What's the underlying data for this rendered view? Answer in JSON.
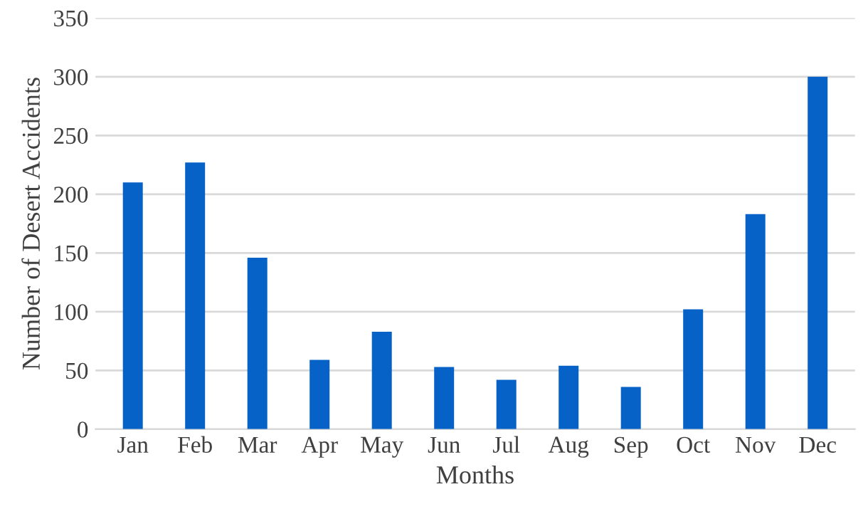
{
  "chart_data": {
    "type": "bar",
    "xlabel": "Months",
    "ylabel": "Number of Desert Accidents",
    "categories": [
      "Jan",
      "Feb",
      "Mar",
      "Apr",
      "May",
      "Jun",
      "Jul",
      "Aug",
      "Sep",
      "Oct",
      "Nov",
      "Dec"
    ],
    "values": [
      210,
      227,
      146,
      59,
      83,
      53,
      42,
      54,
      36,
      102,
      183,
      300
    ],
    "color": "#0762c8",
    "ylim": [
      0,
      350
    ],
    "yticks": [
      0,
      50,
      100,
      150,
      200,
      250,
      300,
      350
    ],
    "grid": "y"
  }
}
